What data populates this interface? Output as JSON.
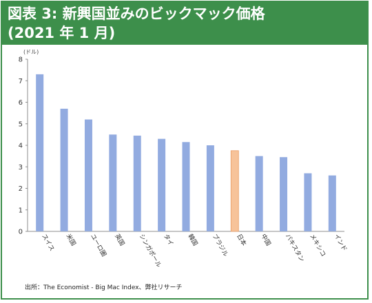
{
  "header": {
    "title_line1": "図表 3: 新興国並みのビックマック価格",
    "title_line2": "(2021 年 1 月)"
  },
  "colors": {
    "header_bg": "#3d8f4b",
    "bar_default": "#92abe0",
    "bar_highlight": "#f7c39a",
    "bar_highlight_border": "#e89a63",
    "axis": "#8c8c8c"
  },
  "chart_data": {
    "type": "bar",
    "unit_label": "(ドル)",
    "categories": [
      "スイス",
      "米国",
      "ユーロ圏",
      "英国",
      "シンガポール",
      "タイ",
      "韓国",
      "ブラジル",
      "日本",
      "中国",
      "パキスタン",
      "メキシコ",
      "インド"
    ],
    "values": [
      7.3,
      5.7,
      5.2,
      4.5,
      4.45,
      4.3,
      4.15,
      4.0,
      3.75,
      3.5,
      3.45,
      2.7,
      2.6
    ],
    "highlight_index": 8,
    "yticks": [
      "0",
      "1",
      "2",
      "3",
      "4",
      "5",
      "6",
      "7",
      "8"
    ],
    "ylim": [
      0,
      8
    ],
    "grid": false,
    "source": "出所：The Economist - Big Mac Index、弊社リサーチ"
  }
}
